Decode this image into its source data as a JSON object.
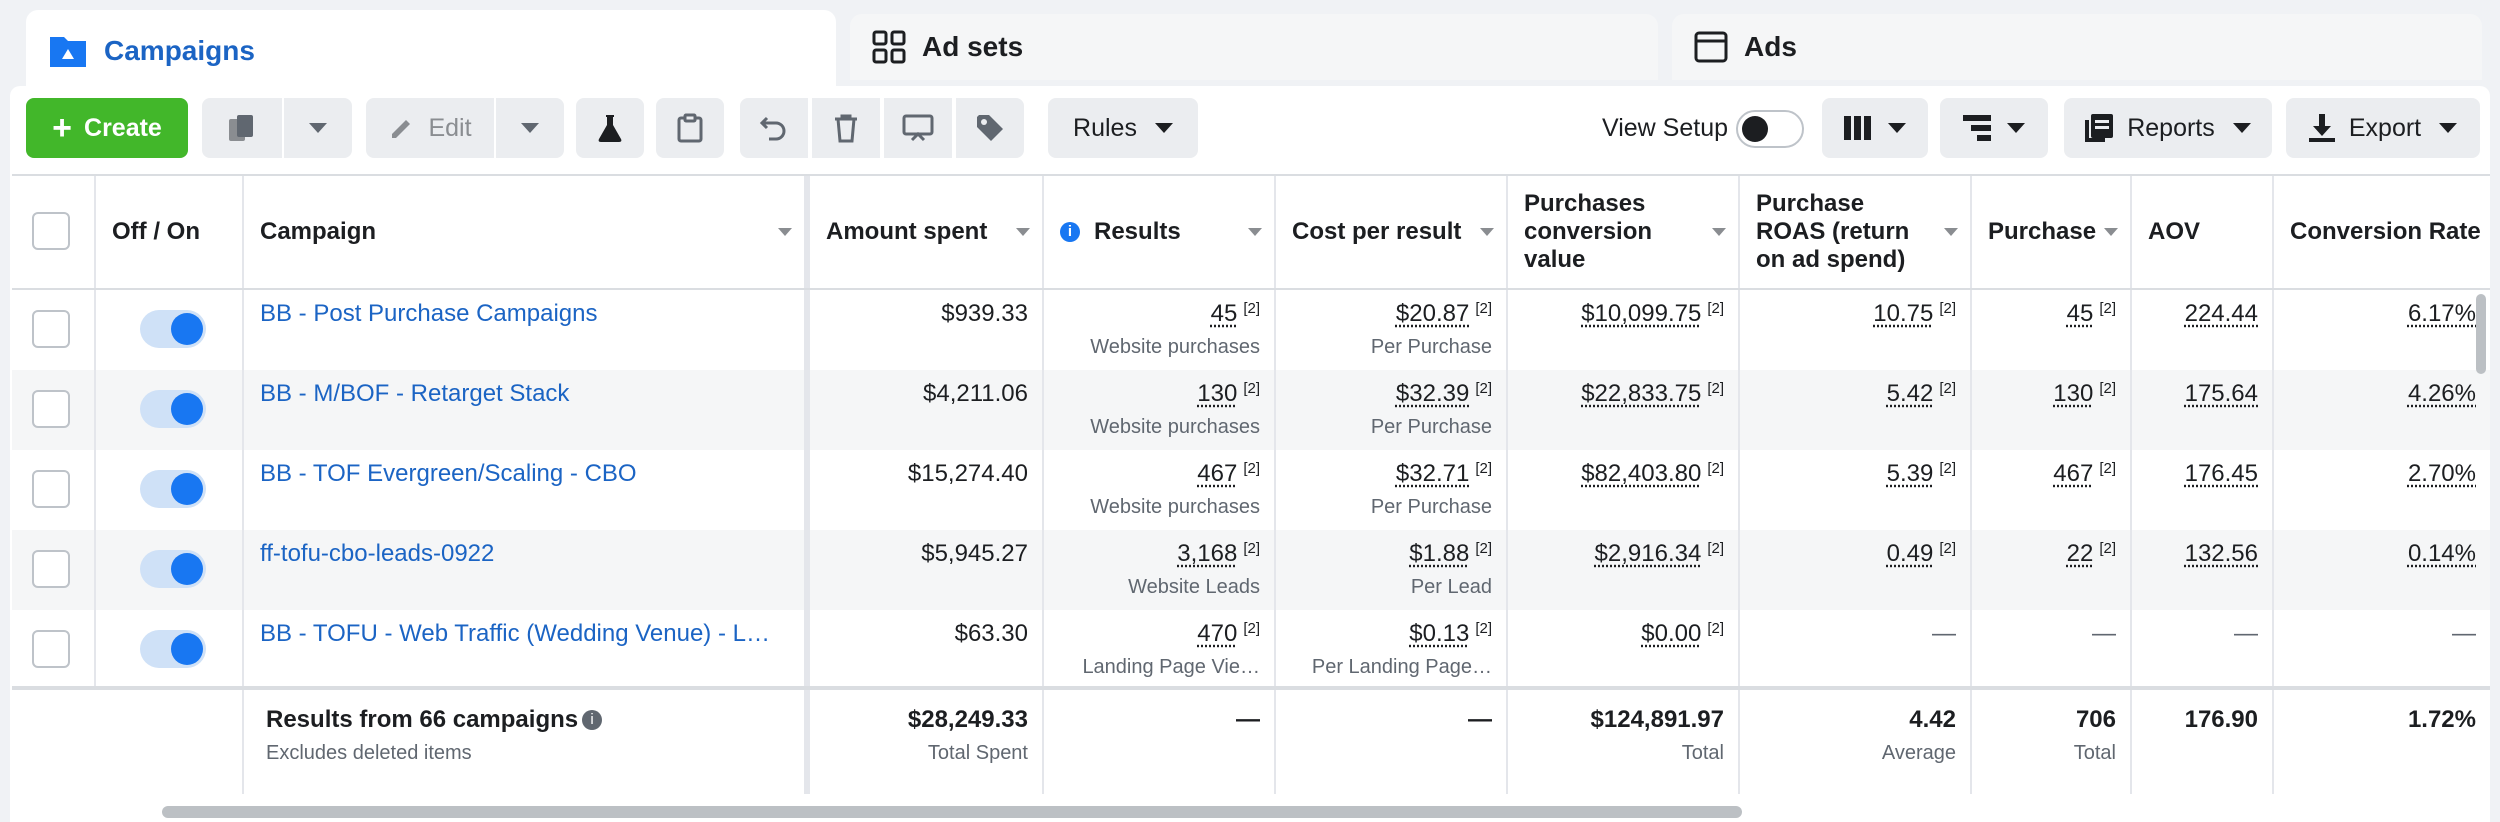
{
  "tabs": {
    "campaigns": "Campaigns",
    "adsets": "Ad sets",
    "ads": "Ads"
  },
  "toolbar": {
    "create": "Create",
    "edit": "Edit",
    "rules": "Rules",
    "view_setup": "View Setup",
    "reports": "Reports",
    "export": "Export"
  },
  "columns": {
    "onoff": "Off / On",
    "campaign": "Campaign",
    "amount": "Amount spent",
    "results": "Results",
    "cpr": "Cost per result",
    "pcv": "Purchases conversion value",
    "roas": "Purchase ROAS (return on ad spend)",
    "purchases": "Purchase",
    "aov": "AOV",
    "cr": "Conversion Rate"
  },
  "rows": [
    {
      "name": "BB - Post Purchase Campaigns",
      "amount": "$939.33",
      "results": "45",
      "results_sub": "Website purchases",
      "cpr": "$20.87",
      "cpr_sub": "Per Purchase",
      "pcv": "$10,099.75",
      "roas": "10.75",
      "purchases": "45",
      "aov": "224.44",
      "cr": "6.17%"
    },
    {
      "name": "BB - M/BOF - Retarget Stack",
      "amount": "$4,211.06",
      "results": "130",
      "results_sub": "Website purchases",
      "cpr": "$32.39",
      "cpr_sub": "Per Purchase",
      "pcv": "$22,833.75",
      "roas": "5.42",
      "purchases": "130",
      "aov": "175.64",
      "cr": "4.26%"
    },
    {
      "name": "BB - TOF Evergreen/Scaling - CBO",
      "amount": "$15,274.40",
      "results": "467",
      "results_sub": "Website purchases",
      "cpr": "$32.71",
      "cpr_sub": "Per Purchase",
      "pcv": "$82,403.80",
      "roas": "5.39",
      "purchases": "467",
      "aov": "176.45",
      "cr": "2.70%"
    },
    {
      "name": "ff-tofu-cbo-leads-0922",
      "amount": "$5,945.27",
      "results": "3,168",
      "results_sub": "Website Leads",
      "cpr": "$1.88",
      "cpr_sub": "Per Lead",
      "pcv": "$2,916.34",
      "roas": "0.49",
      "purchases": "22",
      "aov": "132.56",
      "cr": "0.14%"
    },
    {
      "name": "BB - TOFU - Web Traffic (Wedding Venue) - Lan…",
      "amount": "$63.30",
      "results": "470",
      "results_sub": "Landing Page Vie…",
      "cpr": "$0.13",
      "cpr_sub": "Per Landing Page…",
      "pcv": "$0.00",
      "roas": "—",
      "purchases": "—",
      "aov": "—",
      "cr": "—"
    }
  ],
  "footnote_mark": "[2]",
  "summary": {
    "title": "Results from 66 campaigns",
    "subtitle": "Excludes deleted items",
    "amount": "$28,249.33",
    "amount_sub": "Total Spent",
    "results": "—",
    "cpr": "—",
    "pcv": "$124,891.97",
    "pcv_sub": "Total",
    "roas": "4.42",
    "roas_sub": "Average",
    "purchases": "706",
    "purchases_sub": "Total",
    "aov": "176.90",
    "cr": "1.72%"
  },
  "colors": {
    "accent": "#1b64c4",
    "create": "#42b72a",
    "toggle": "#1877f2"
  }
}
